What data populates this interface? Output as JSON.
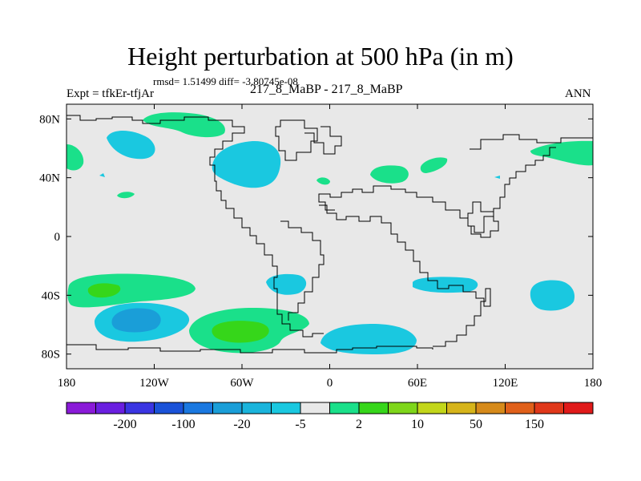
{
  "title": "Height perturbation at 500 hPa (in m)",
  "stats": "rmsd= 1.51499 diff= -3.80745e-08",
  "experiment": "Expt = tfkEr-tfjAr",
  "case_label": "217_8_MaBP - 217_8_MaBP",
  "season": "ANN",
  "axes": {
    "lat_ticks": [
      {
        "value": 80,
        "label": "80N"
      },
      {
        "value": 40,
        "label": "40N"
      },
      {
        "value": 0,
        "label": "0"
      },
      {
        "value": -40,
        "label": "40S"
      },
      {
        "value": -80,
        "label": "80S"
      }
    ],
    "lon_ticks": [
      {
        "value": -180,
        "label": "180"
      },
      {
        "value": -120,
        "label": "120W"
      },
      {
        "value": -60,
        "label": "60W"
      },
      {
        "value": 0,
        "label": "0"
      },
      {
        "value": 60,
        "label": "60E"
      },
      {
        "value": 120,
        "label": "120E"
      },
      {
        "value": 180,
        "label": "180"
      }
    ],
    "lon_range": [
      -180,
      180
    ],
    "lat_range": [
      -90,
      90
    ]
  },
  "colorbar": {
    "colors": [
      "#8a1ad8",
      "#6a1fe0",
      "#3a35e2",
      "#1a52d8",
      "#1a78e0",
      "#1a9ed8",
      "#1ab4dc",
      "#1ac8e0",
      "#e8e8e8",
      "#1ae08a",
      "#36d61a",
      "#7ed61a",
      "#c2d61a",
      "#d6b41a",
      "#d68a1a",
      "#e0601a",
      "#e0381a",
      "#e01a1a"
    ],
    "labels": [
      "-200",
      "-100",
      "-20",
      "-5",
      "2",
      "10",
      "50",
      "150"
    ]
  },
  "contour_colors": {
    "positive_light": "#1ae08a",
    "positive_mid": "#36d61a",
    "positive_strong": "#7ed61a",
    "negative_light": "#1ac8e0",
    "negative_mid": "#1ab4dc",
    "negative_strong": "#1a9ed8",
    "background": "#e8e8e8"
  }
}
